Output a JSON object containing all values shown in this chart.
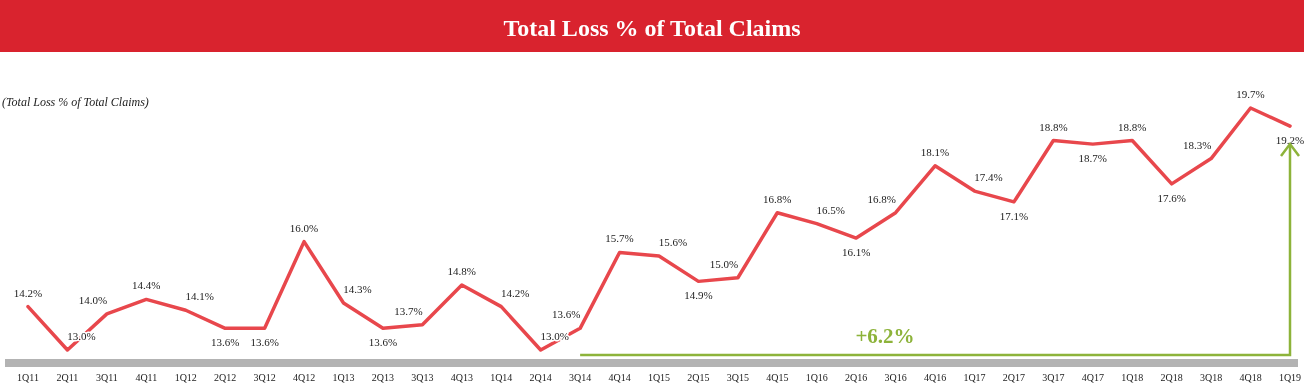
{
  "chart_data": {
    "type": "line",
    "title": "Total Loss % of Total Claims",
    "subtitle": "(Total Loss % of Total Claims)",
    "categories": [
      "1Q11",
      "2Q11",
      "3Q11",
      "4Q11",
      "1Q12",
      "2Q12",
      "3Q12",
      "4Q12",
      "1Q13",
      "2Q13",
      "3Q13",
      "4Q13",
      "1Q14",
      "2Q14",
      "3Q14",
      "4Q14",
      "1Q15",
      "2Q15",
      "3Q15",
      "4Q15",
      "1Q16",
      "2Q16",
      "3Q16",
      "4Q16",
      "1Q17",
      "2Q17",
      "3Q17",
      "4Q17",
      "1Q18",
      "2Q18",
      "3Q18",
      "4Q18",
      "1Q19"
    ],
    "series": [
      {
        "color": "#e8474c",
        "values": [
          14.2,
          13.0,
          14.0,
          14.4,
          14.1,
          13.6,
          13.6,
          16.0,
          14.3,
          13.6,
          13.7,
          14.8,
          14.2,
          13.0,
          13.6,
          15.7,
          15.6,
          14.9,
          15.0,
          16.8,
          16.5,
          16.1,
          16.8,
          18.1,
          17.4,
          17.1,
          18.8,
          18.7,
          18.8,
          17.6,
          18.3,
          19.7,
          19.2
        ],
        "value_labels": [
          "14.2%",
          "13.0%",
          "14.0%",
          "14.4%",
          "14.1%",
          "13.6%",
          "13.6%",
          "16.0%",
          "14.3%",
          "13.6%",
          "13.7%",
          "14.8%",
          "14.2%",
          "13.0%",
          "13.6%",
          "15.7%",
          "15.6%",
          "14.9%",
          "15.0%",
          "16.8%",
          "16.5%",
          "16.1%",
          "16.8%",
          "18.1%",
          "17.4%",
          "17.1%",
          "18.8%",
          "18.7%",
          "18.8%",
          "17.6%",
          "18.3%",
          "19.7%",
          "19.2%"
        ]
      }
    ],
    "annotations": [
      "+6.2%"
    ],
    "marker": "none",
    "line_style": "solid",
    "grid": false
  }
}
